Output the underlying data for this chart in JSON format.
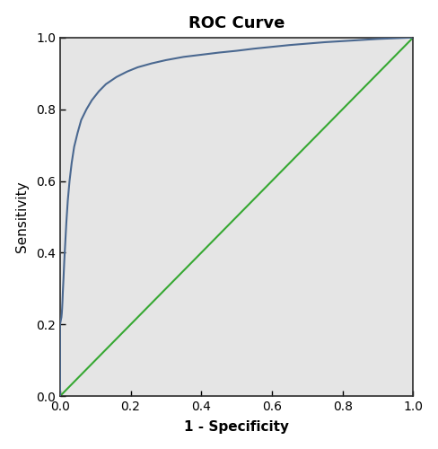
{
  "title": "ROC Curve",
  "xlabel": "1 - Specificity",
  "ylabel": "Sensitivity",
  "xlim": [
    0.0,
    1.0
  ],
  "ylim": [
    0.0,
    1.0
  ],
  "xticks": [
    0.0,
    0.2,
    0.4,
    0.6,
    0.8,
    1.0
  ],
  "yticks": [
    0.0,
    0.2,
    0.4,
    0.6,
    0.8,
    1.0
  ],
  "plot_bg_color": "#e5e5e5",
  "fig_bg_color": "#ffffff",
  "roc_color": "#4a6890",
  "diagonal_color": "#36a832",
  "roc_linewidth": 1.5,
  "diagonal_linewidth": 1.5,
  "title_fontsize": 13,
  "label_fontsize": 11,
  "tick_fontsize": 10,
  "roc_x": [
    0.0,
    0.0,
    0.0,
    0.001,
    0.002,
    0.003,
    0.004,
    0.005,
    0.006,
    0.007,
    0.008,
    0.01,
    0.012,
    0.015,
    0.018,
    0.022,
    0.027,
    0.033,
    0.04,
    0.05,
    0.06,
    0.075,
    0.09,
    0.11,
    0.13,
    0.16,
    0.19,
    0.22,
    0.26,
    0.3,
    0.35,
    0.4,
    0.45,
    0.5,
    0.55,
    0.6,
    0.65,
    0.7,
    0.75,
    0.8,
    0.85,
    0.9,
    0.95,
    1.0
  ],
  "roc_y": [
    0.0,
    0.195,
    0.2,
    0.205,
    0.21,
    0.215,
    0.22,
    0.23,
    0.245,
    0.265,
    0.29,
    0.33,
    0.375,
    0.43,
    0.485,
    0.545,
    0.6,
    0.65,
    0.695,
    0.735,
    0.77,
    0.8,
    0.825,
    0.85,
    0.87,
    0.89,
    0.905,
    0.917,
    0.928,
    0.937,
    0.946,
    0.952,
    0.958,
    0.963,
    0.969,
    0.974,
    0.979,
    0.983,
    0.987,
    0.99,
    0.993,
    0.996,
    0.998,
    1.0
  ]
}
